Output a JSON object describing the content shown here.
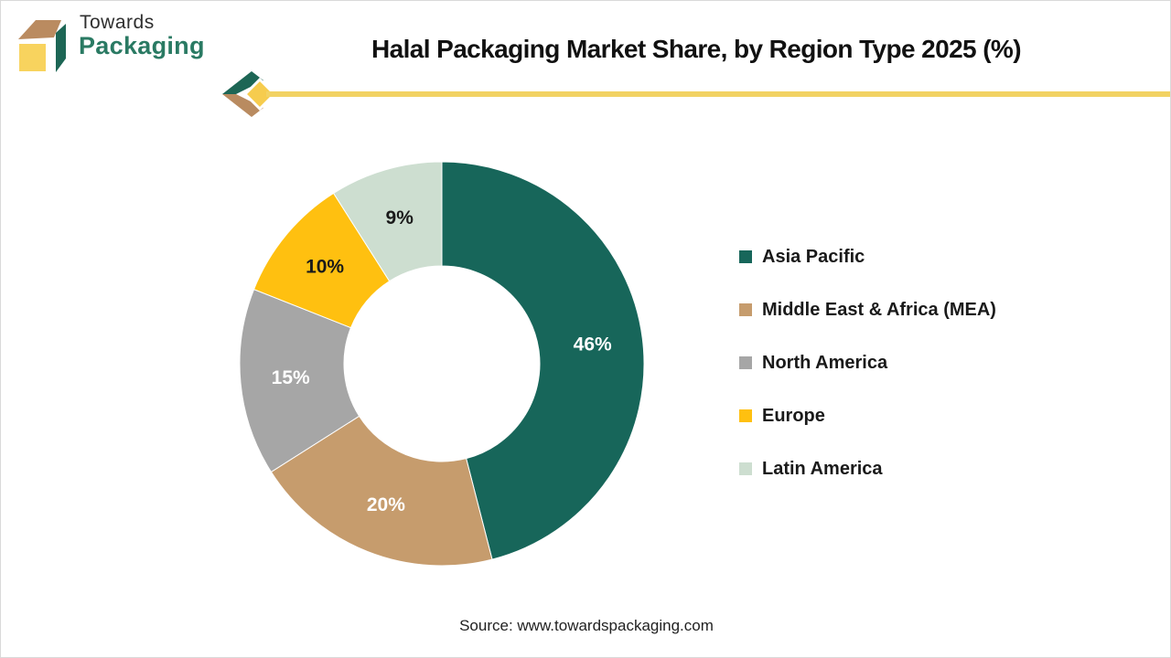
{
  "brand": {
    "line1": "Towards",
    "line2": "Packaging",
    "cube_colors": {
      "top": "#BA8B60",
      "right": "#1D6655",
      "front": "#F8D35E"
    },
    "name_color": "#2A7A63"
  },
  "header": {
    "title": "Halal Packaging Market Share, by Region Type 2025 (%)"
  },
  "decor": {
    "divider_color": "#F2D263",
    "diamond_color": "#F6CC4E",
    "chevron_green": "#1D6655",
    "chevron_brown": "#B98B60"
  },
  "chart_data": {
    "type": "pie",
    "subtype": "donut",
    "title": "Halal Packaging Market Share, by Region Type 2025 (%)",
    "unit": "%",
    "start_angle_deg": 0,
    "direction": "clockwise",
    "inner_radius_ratio": 0.48,
    "legend_position": "right",
    "categories": [
      "Asia Pacific",
      "Middle East & Africa (MEA)",
      "North America",
      "Europe",
      "Latin America"
    ],
    "values": [
      46,
      20,
      15,
      10,
      9
    ],
    "data_labels": [
      "46%",
      "20%",
      "15%",
      "10%",
      "9%"
    ],
    "colors": [
      "#17665A",
      "#C69C6D",
      "#A6A6A6",
      "#FFC010",
      "#CDDED0"
    ],
    "data_label_colors": [
      "#FFFFFF",
      "#FFFFFF",
      "#FFFFFF",
      "#1A1A1A",
      "#1A1A1A"
    ]
  },
  "footer": {
    "source": "Source: www.towardspackaging.com"
  }
}
